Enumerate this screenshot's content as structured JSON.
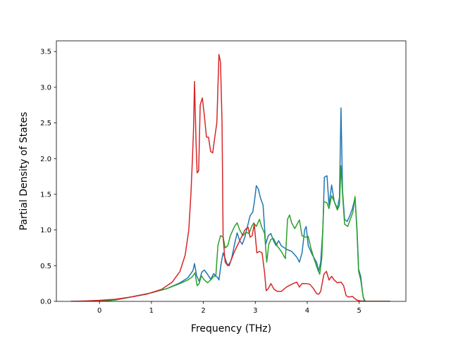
{
  "chart_data": {
    "type": "line",
    "title": "",
    "xlabel": "Frequency (THz)",
    "ylabel": "Partial Density of States",
    "xlim": [
      -0.83,
      5.9
    ],
    "ylim": [
      0,
      3.65
    ],
    "xticks": [
      0,
      1,
      2,
      3,
      4,
      5
    ],
    "yticks": [
      0.0,
      0.5,
      1.0,
      1.5,
      2.0,
      2.5,
      3.0,
      3.5
    ],
    "xtick_labels": [
      "0",
      "1",
      "2",
      "3",
      "4",
      "5"
    ],
    "ytick_labels": [
      "0.0",
      "0.5",
      "1.0",
      "1.5",
      "2.0",
      "2.5",
      "3.0",
      "3.5"
    ],
    "grid": false,
    "legend": "none",
    "series": [
      {
        "color": "#1f77b4",
        "points": [
          [
            -0.55,
            0
          ],
          [
            0,
            0
          ],
          [
            0.3,
            0.02
          ],
          [
            0.6,
            0.06
          ],
          [
            1.0,
            0.12
          ],
          [
            1.3,
            0.18
          ],
          [
            1.55,
            0.26
          ],
          [
            1.7,
            0.33
          ],
          [
            1.8,
            0.43
          ],
          [
            1.83,
            0.53
          ],
          [
            1.87,
            0.36
          ],
          [
            1.92,
            0.28
          ],
          [
            1.97,
            0.41
          ],
          [
            2.02,
            0.44
          ],
          [
            2.08,
            0.38
          ],
          [
            2.14,
            0.31
          ],
          [
            2.2,
            0.39
          ],
          [
            2.24,
            0.35
          ],
          [
            2.27,
            0.34
          ],
          [
            2.3,
            0.3
          ],
          [
            2.34,
            0.52
          ],
          [
            2.38,
            0.68
          ],
          [
            2.42,
            0.6
          ],
          [
            2.46,
            0.52
          ],
          [
            2.5,
            0.5
          ],
          [
            2.55,
            0.62
          ],
          [
            2.6,
            0.8
          ],
          [
            2.65,
            0.96
          ],
          [
            2.7,
            0.85
          ],
          [
            2.75,
            0.8
          ],
          [
            2.8,
            0.9
          ],
          [
            2.85,
            1.05
          ],
          [
            2.9,
            1.2
          ],
          [
            2.95,
            1.25
          ],
          [
            2.98,
            1.38
          ],
          [
            3.02,
            1.62
          ],
          [
            3.06,
            1.57
          ],
          [
            3.1,
            1.45
          ],
          [
            3.15,
            1.35
          ],
          [
            3.2,
            0.8
          ],
          [
            3.25,
            0.92
          ],
          [
            3.3,
            0.95
          ],
          [
            3.35,
            0.85
          ],
          [
            3.4,
            0.78
          ],
          [
            3.45,
            0.85
          ],
          [
            3.5,
            0.78
          ],
          [
            3.6,
            0.73
          ],
          [
            3.7,
            0.7
          ],
          [
            3.8,
            0.62
          ],
          [
            3.85,
            0.55
          ],
          [
            3.9,
            0.68
          ],
          [
            3.95,
            1.0
          ],
          [
            3.98,
            1.05
          ],
          [
            4.02,
            0.78
          ],
          [
            4.1,
            0.65
          ],
          [
            4.18,
            0.55
          ],
          [
            4.22,
            0.42
          ],
          [
            4.26,
            0.55
          ],
          [
            4.3,
            1.0
          ],
          [
            4.33,
            1.74
          ],
          [
            4.38,
            1.76
          ],
          [
            4.42,
            1.35
          ],
          [
            4.47,
            1.63
          ],
          [
            4.52,
            1.4
          ],
          [
            4.58,
            1.3
          ],
          [
            4.62,
            1.45
          ],
          [
            4.65,
            2.71
          ],
          [
            4.68,
            1.55
          ],
          [
            4.72,
            1.15
          ],
          [
            4.77,
            1.12
          ],
          [
            4.82,
            1.2
          ],
          [
            4.87,
            1.3
          ],
          [
            4.92,
            1.45
          ],
          [
            4.96,
            1.0
          ],
          [
            4.99,
            0.45
          ],
          [
            5.03,
            0.35
          ],
          [
            5.07,
            0.1
          ],
          [
            5.1,
            0
          ],
          [
            5.3,
            0
          ],
          [
            5.6,
            0
          ]
        ]
      },
      {
        "color": "#2ca02c",
        "points": [
          [
            -0.55,
            0
          ],
          [
            0,
            0
          ],
          [
            0.3,
            0.02
          ],
          [
            0.6,
            0.06
          ],
          [
            1.0,
            0.12
          ],
          [
            1.3,
            0.18
          ],
          [
            1.55,
            0.25
          ],
          [
            1.7,
            0.3
          ],
          [
            1.78,
            0.34
          ],
          [
            1.84,
            0.4
          ],
          [
            1.88,
            0.22
          ],
          [
            1.92,
            0.25
          ],
          [
            1.96,
            0.36
          ],
          [
            2.02,
            0.3
          ],
          [
            2.08,
            0.26
          ],
          [
            2.14,
            0.3
          ],
          [
            2.2,
            0.35
          ],
          [
            2.24,
            0.36
          ],
          [
            2.28,
            0.78
          ],
          [
            2.33,
            0.92
          ],
          [
            2.38,
            0.9
          ],
          [
            2.42,
            0.75
          ],
          [
            2.47,
            0.78
          ],
          [
            2.52,
            0.92
          ],
          [
            2.6,
            1.05
          ],
          [
            2.65,
            1.1
          ],
          [
            2.7,
            1.0
          ],
          [
            2.76,
            0.92
          ],
          [
            2.82,
            0.97
          ],
          [
            2.88,
            0.95
          ],
          [
            2.93,
            1.05
          ],
          [
            2.97,
            1.1
          ],
          [
            3.02,
            1.05
          ],
          [
            3.08,
            1.15
          ],
          [
            3.12,
            1.05
          ],
          [
            3.18,
            0.95
          ],
          [
            3.22,
            0.55
          ],
          [
            3.26,
            0.8
          ],
          [
            3.3,
            0.87
          ],
          [
            3.35,
            0.88
          ],
          [
            3.42,
            0.78
          ],
          [
            3.5,
            0.7
          ],
          [
            3.58,
            0.6
          ],
          [
            3.62,
            1.15
          ],
          [
            3.66,
            1.21
          ],
          [
            3.7,
            1.1
          ],
          [
            3.76,
            1.02
          ],
          [
            3.82,
            1.1
          ],
          [
            3.85,
            1.14
          ],
          [
            3.9,
            0.92
          ],
          [
            3.97,
            0.9
          ],
          [
            4.02,
            0.91
          ],
          [
            4.07,
            0.75
          ],
          [
            4.13,
            0.6
          ],
          [
            4.2,
            0.45
          ],
          [
            4.24,
            0.38
          ],
          [
            4.28,
            0.6
          ],
          [
            4.32,
            1.4
          ],
          [
            4.38,
            1.38
          ],
          [
            4.42,
            1.3
          ],
          [
            4.47,
            1.48
          ],
          [
            4.52,
            1.4
          ],
          [
            4.58,
            1.28
          ],
          [
            4.62,
            1.35
          ],
          [
            4.65,
            1.9
          ],
          [
            4.68,
            1.5
          ],
          [
            4.72,
            1.08
          ],
          [
            4.78,
            1.05
          ],
          [
            4.83,
            1.15
          ],
          [
            4.88,
            1.25
          ],
          [
            4.92,
            1.47
          ],
          [
            4.96,
            0.95
          ],
          [
            4.99,
            0.42
          ],
          [
            5.03,
            0.3
          ],
          [
            5.08,
            0.05
          ],
          [
            5.12,
            0
          ],
          [
            5.3,
            0
          ],
          [
            5.6,
            0
          ]
        ]
      },
      {
        "color": "#d62728",
        "points": [
          [
            -0.55,
            0
          ],
          [
            -0.3,
            0.005
          ],
          [
            0,
            0.015
          ],
          [
            0.3,
            0.03
          ],
          [
            0.6,
            0.06
          ],
          [
            0.9,
            0.1
          ],
          [
            1.2,
            0.17
          ],
          [
            1.4,
            0.27
          ],
          [
            1.55,
            0.42
          ],
          [
            1.65,
            0.65
          ],
          [
            1.72,
            1.0
          ],
          [
            1.76,
            1.5
          ],
          [
            1.79,
            2.0
          ],
          [
            1.81,
            2.4
          ],
          [
            1.83,
            3.08
          ],
          [
            1.86,
            2.2
          ],
          [
            1.88,
            1.8
          ],
          [
            1.91,
            1.83
          ],
          [
            1.94,
            2.75
          ],
          [
            1.98,
            2.85
          ],
          [
            2.02,
            2.6
          ],
          [
            2.06,
            2.3
          ],
          [
            2.1,
            2.3
          ],
          [
            2.14,
            2.1
          ],
          [
            2.18,
            2.08
          ],
          [
            2.22,
            2.3
          ],
          [
            2.26,
            2.5
          ],
          [
            2.3,
            3.46
          ],
          [
            2.33,
            3.35
          ],
          [
            2.36,
            2.5
          ],
          [
            2.38,
            0.9
          ],
          [
            2.42,
            0.55
          ],
          [
            2.47,
            0.5
          ],
          [
            2.52,
            0.55
          ],
          [
            2.6,
            0.7
          ],
          [
            2.7,
            0.85
          ],
          [
            2.8,
            1.0
          ],
          [
            2.86,
            1.04
          ],
          [
            2.9,
            0.9
          ],
          [
            2.94,
            0.92
          ],
          [
            2.98,
            1.08
          ],
          [
            3.03,
            0.68
          ],
          [
            3.08,
            0.7
          ],
          [
            3.13,
            0.68
          ],
          [
            3.18,
            0.4
          ],
          [
            3.21,
            0.15
          ],
          [
            3.25,
            0.18
          ],
          [
            3.3,
            0.25
          ],
          [
            3.36,
            0.17
          ],
          [
            3.42,
            0.14
          ],
          [
            3.5,
            0.14
          ],
          [
            3.6,
            0.2
          ],
          [
            3.7,
            0.24
          ],
          [
            3.8,
            0.27
          ],
          [
            3.85,
            0.2
          ],
          [
            3.9,
            0.25
          ],
          [
            3.98,
            0.25
          ],
          [
            4.05,
            0.24
          ],
          [
            4.12,
            0.18
          ],
          [
            4.18,
            0.11
          ],
          [
            4.22,
            0.1
          ],
          [
            4.26,
            0.14
          ],
          [
            4.32,
            0.38
          ],
          [
            4.37,
            0.42
          ],
          [
            4.42,
            0.3
          ],
          [
            4.47,
            0.35
          ],
          [
            4.52,
            0.3
          ],
          [
            4.58,
            0.26
          ],
          [
            4.65,
            0.27
          ],
          [
            4.7,
            0.22
          ],
          [
            4.75,
            0.08
          ],
          [
            4.8,
            0.06
          ],
          [
            4.87,
            0.07
          ],
          [
            4.95,
            0.02
          ],
          [
            5.0,
            0.01
          ],
          [
            5.1,
            0
          ],
          [
            5.3,
            0
          ],
          [
            5.6,
            0
          ]
        ]
      }
    ]
  }
}
